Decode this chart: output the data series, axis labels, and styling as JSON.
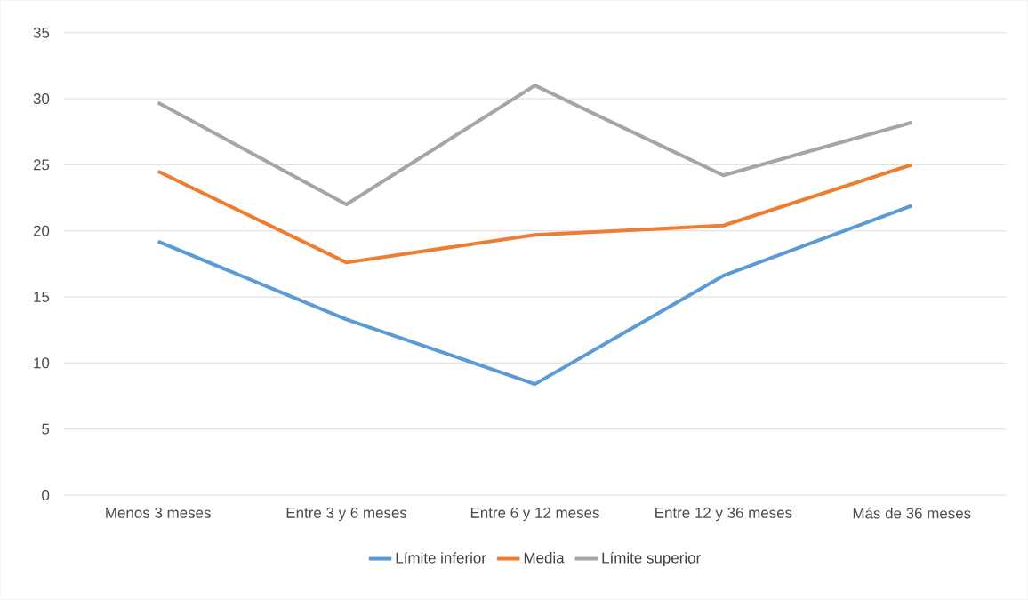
{
  "chart_data": {
    "type": "line",
    "categories": [
      "Menos 3 meses",
      "Entre 3 y 6 meses",
      "Entre 6 y 12 meses",
      "Entre 12 y 36 meses",
      "Más de 36 meses"
    ],
    "series": [
      {
        "name": "Límite inferior",
        "color": "#5b9bd5",
        "values": [
          19.2,
          13.3,
          8.4,
          16.6,
          21.9
        ]
      },
      {
        "name": "Media",
        "color": "#ed7d31",
        "values": [
          24.5,
          17.6,
          19.7,
          20.4,
          25.0
        ]
      },
      {
        "name": "Límite superior",
        "color": "#a5a5a5",
        "values": [
          29.7,
          22.0,
          31.0,
          24.2,
          28.2
        ]
      }
    ],
    "ylim": [
      0,
      35
    ],
    "yticks": [
      0,
      5,
      10,
      15,
      20,
      25,
      30,
      35
    ],
    "grid": "y",
    "legend": "bottom",
    "marker": "none",
    "line_style": "solid"
  }
}
